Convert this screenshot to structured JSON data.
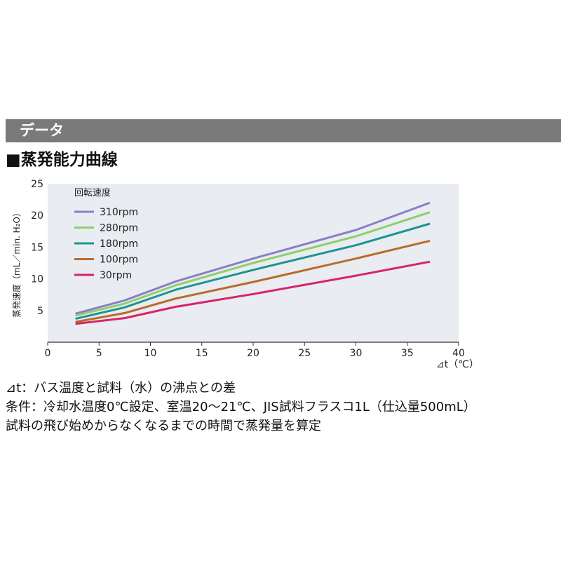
{
  "header": {
    "title": "データ"
  },
  "section": {
    "title": "■蒸発能力曲線"
  },
  "chart_data": {
    "type": "line",
    "title": "",
    "xlabel": "⊿t（℃）",
    "ylabel": "蒸発速度（mL／min. H₂O）",
    "xlim": [
      0,
      40
    ],
    "ylim": [
      0,
      25
    ],
    "xticks": [
      0,
      5,
      10,
      15,
      20,
      25,
      30,
      35,
      40
    ],
    "yticks": [
      5,
      10,
      15,
      20,
      25
    ],
    "legend_title": "回転速度",
    "legend_position": "top-left",
    "grid": false,
    "series": [
      {
        "name": "310rpm",
        "color": "#8a7fc6",
        "x": [
          2.7,
          7.5,
          12.5,
          20,
          30,
          37.2
        ],
        "y": [
          4.5,
          6.6,
          9.6,
          13.2,
          17.7,
          22.0
        ]
      },
      {
        "name": "280rpm",
        "color": "#8fcf6a",
        "x": [
          2.7,
          7.5,
          12.5,
          20,
          30,
          37.2
        ],
        "y": [
          4.2,
          6.1,
          9.0,
          12.5,
          16.7,
          20.5
        ]
      },
      {
        "name": "180rpm",
        "color": "#1d948f",
        "x": [
          2.7,
          7.5,
          12.5,
          20,
          30,
          37.2
        ],
        "y": [
          3.7,
          5.5,
          8.3,
          11.4,
          15.3,
          18.7
        ]
      },
      {
        "name": "100rpm",
        "color": "#b96b28",
        "x": [
          2.7,
          7.5,
          12.5,
          20,
          30,
          37.2
        ],
        "y": [
          3.2,
          4.6,
          6.9,
          9.5,
          13.2,
          16.0
        ]
      },
      {
        "name": "30rpm",
        "color": "#d8236a",
        "x": [
          2.7,
          7.5,
          12.5,
          20,
          30,
          37.2
        ],
        "y": [
          2.9,
          3.8,
          5.6,
          7.6,
          10.5,
          12.7
        ]
      }
    ]
  },
  "notes": [
    "⊿t：バス温度と試料（水）の沸点との差",
    "条件：冷却水温度0℃設定、室温20～21℃、JIS試料フラスコ1L（仕込量500mL）",
    "試料の飛び始めからなくなるまでの時間で蒸発量を算定"
  ]
}
